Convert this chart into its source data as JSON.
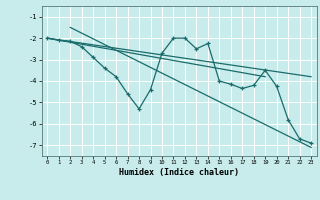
{
  "xlabel": "Humidex (Indice chaleur)",
  "bg_color": "#c8ecec",
  "grid_color": "#ffffff",
  "line_color": "#1a6b6b",
  "xlim": [
    -0.5,
    23.5
  ],
  "ylim": [
    -7.5,
    -0.5
  ],
  "yticks": [
    -7,
    -6,
    -5,
    -4,
    -3,
    -2,
    -1
  ],
  "xticks": [
    0,
    1,
    2,
    3,
    4,
    5,
    6,
    7,
    8,
    9,
    10,
    11,
    12,
    13,
    14,
    15,
    16,
    17,
    18,
    19,
    20,
    21,
    22,
    23
  ],
  "line1_x": [
    0,
    23
  ],
  "line1_y": [
    -2.0,
    -3.8
  ],
  "line2_x": [
    0,
    1,
    2,
    3,
    4,
    5,
    6,
    7,
    8,
    9,
    10,
    11,
    12,
    13,
    14,
    15,
    16,
    17,
    18,
    19,
    20,
    21,
    22,
    23
  ],
  "line2_y": [
    -2.0,
    -2.1,
    -2.15,
    -2.4,
    -2.9,
    -3.4,
    -3.8,
    -4.6,
    -5.3,
    -4.4,
    -2.7,
    -2.0,
    -2.0,
    -2.5,
    -2.25,
    -4.0,
    -4.15,
    -4.35,
    -4.2,
    -3.5,
    -4.25,
    -5.8,
    -6.7,
    -6.9
  ],
  "line3_x": [
    2,
    23
  ],
  "line3_y": [
    -1.5,
    -7.1
  ],
  "line4_x": [
    0,
    19
  ],
  "line4_y": [
    -2.0,
    -3.8
  ]
}
